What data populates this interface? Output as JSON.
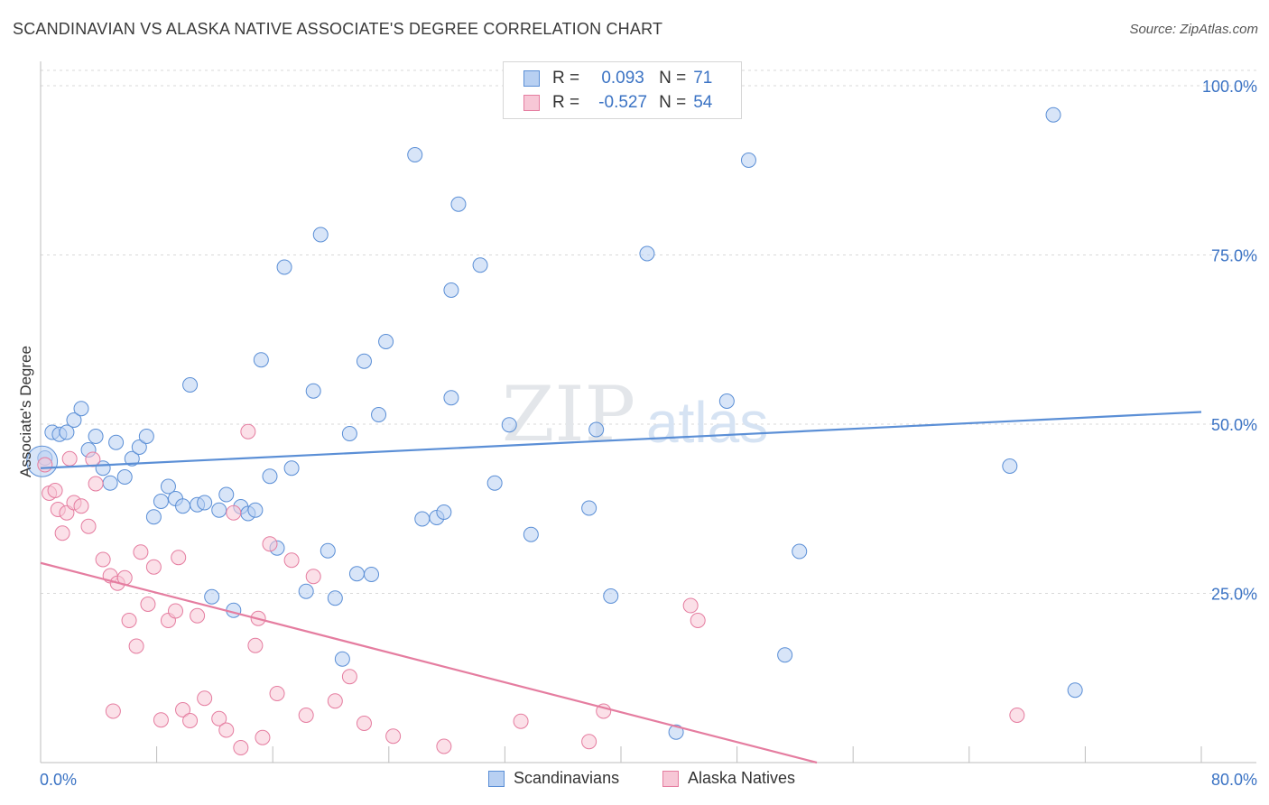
{
  "title": "SCANDINAVIAN VS ALASKA NATIVE ASSOCIATE'S DEGREE CORRELATION CHART",
  "source": "Source: ZipAtlas.com",
  "watermark": {
    "zip": "ZIP",
    "atlas": "atlas"
  },
  "legend": {
    "rows": [
      {
        "r_label": "R =",
        "r_value": "0.093",
        "n_label": "N =",
        "n_value": "71",
        "fill": "#b8d0f2",
        "stroke": "#5b8fd6"
      },
      {
        "r_label": "R =",
        "r_value": "-0.527",
        "n_label": "N =",
        "n_value": "54",
        "fill": "#f7c7d6",
        "stroke": "#e57da0"
      }
    ]
  },
  "bottom_legend": [
    {
      "label": "Scandinavians",
      "fill": "#b8d0f2",
      "stroke": "#5b8fd6"
    },
    {
      "label": "Alaska Natives",
      "fill": "#f7c7d6",
      "stroke": "#e57da0"
    }
  ],
  "chart_data": {
    "type": "scatter",
    "title": "SCANDINAVIAN VS ALASKA NATIVE ASSOCIATE'S DEGREE CORRELATION CHART",
    "xlabel": "",
    "ylabel": "Associate's Degree",
    "xlim": [
      0,
      80
    ],
    "ylim": [
      0,
      100
    ],
    "x_tick_labels": [
      "0.0%",
      "80.0%"
    ],
    "y_tick_labels": [
      {
        "value": 25,
        "label": "25.0%"
      },
      {
        "value": 50,
        "label": "50.0%"
      },
      {
        "value": 75,
        "label": "75.0%"
      },
      {
        "value": 100,
        "label": "100.0%"
      }
    ],
    "series": [
      {
        "name": "Scandinavians",
        "color": "#5b8fd6",
        "fill": "#b8d0f2",
        "trend": {
          "x": [
            0,
            80
          ],
          "y": [
            43.5,
            51.8
          ]
        },
        "points": [
          [
            0.3,
            45.0
          ],
          [
            0.8,
            48.8
          ],
          [
            1.3,
            48.5
          ],
          [
            1.8,
            48.8
          ],
          [
            2.3,
            50.6
          ],
          [
            2.8,
            52.3
          ],
          [
            3.3,
            46.2
          ],
          [
            3.8,
            48.2
          ],
          [
            4.3,
            43.5
          ],
          [
            4.8,
            41.3
          ],
          [
            5.2,
            47.3
          ],
          [
            5.8,
            42.2
          ],
          [
            6.3,
            44.9
          ],
          [
            6.8,
            46.6
          ],
          [
            7.3,
            48.2
          ],
          [
            7.8,
            36.3
          ],
          [
            8.3,
            38.6
          ],
          [
            8.8,
            40.8
          ],
          [
            9.3,
            39.0
          ],
          [
            9.8,
            37.9
          ],
          [
            10.3,
            55.8
          ],
          [
            10.8,
            38.1
          ],
          [
            11.3,
            38.4
          ],
          [
            11.8,
            24.5
          ],
          [
            12.3,
            37.3
          ],
          [
            12.8,
            39.6
          ],
          [
            13.3,
            22.5
          ],
          [
            13.8,
            37.8
          ],
          [
            14.3,
            36.8
          ],
          [
            14.8,
            37.3
          ],
          [
            15.2,
            59.5
          ],
          [
            15.8,
            42.3
          ],
          [
            16.3,
            31.7
          ],
          [
            16.8,
            73.2
          ],
          [
            17.3,
            43.5
          ],
          [
            18.3,
            25.3
          ],
          [
            18.8,
            54.9
          ],
          [
            19.3,
            78.0
          ],
          [
            19.8,
            31.3
          ],
          [
            20.3,
            24.3
          ],
          [
            20.8,
            15.3
          ],
          [
            21.3,
            48.6
          ],
          [
            21.8,
            27.9
          ],
          [
            22.3,
            59.3
          ],
          [
            22.8,
            27.8
          ],
          [
            23.3,
            51.4
          ],
          [
            23.8,
            62.2
          ],
          [
            25.8,
            89.8
          ],
          [
            26.3,
            36.0
          ],
          [
            27.3,
            36.2
          ],
          [
            27.8,
            37.0
          ],
          [
            28.3,
            53.9
          ],
          [
            28.3,
            69.8
          ],
          [
            28.8,
            82.5
          ],
          [
            30.3,
            73.5
          ],
          [
            31.3,
            41.3
          ],
          [
            32.3,
            49.9
          ],
          [
            33.8,
            33.7
          ],
          [
            37.8,
            37.6
          ],
          [
            38.3,
            49.2
          ],
          [
            39.3,
            24.6
          ],
          [
            41.8,
            75.2
          ],
          [
            43.8,
            4.5
          ],
          [
            47.3,
            53.4
          ],
          [
            48.8,
            89.0
          ],
          [
            51.3,
            15.9
          ],
          [
            52.3,
            31.2
          ],
          [
            66.8,
            43.8
          ],
          [
            69.8,
            95.7
          ],
          [
            71.3,
            10.7
          ],
          [
            0.1,
            44.5
          ]
        ]
      },
      {
        "name": "Alaska Natives",
        "color": "#e57da0",
        "fill": "#f7c7d6",
        "trend": {
          "x": [
            0,
            53.5
          ],
          "y": [
            29.5,
            0
          ]
        },
        "points": [
          [
            0.3,
            44.0
          ],
          [
            0.6,
            39.8
          ],
          [
            1.0,
            40.2
          ],
          [
            1.2,
            37.4
          ],
          [
            1.5,
            33.9
          ],
          [
            1.8,
            36.9
          ],
          [
            2.0,
            44.9
          ],
          [
            2.3,
            38.4
          ],
          [
            2.8,
            37.9
          ],
          [
            3.3,
            34.9
          ],
          [
            3.6,
            44.8
          ],
          [
            3.8,
            41.2
          ],
          [
            4.3,
            30.0
          ],
          [
            4.8,
            27.6
          ],
          [
            5.0,
            7.6
          ],
          [
            5.3,
            26.5
          ],
          [
            5.8,
            27.3
          ],
          [
            6.1,
            21.0
          ],
          [
            6.6,
            17.2
          ],
          [
            6.9,
            31.1
          ],
          [
            7.4,
            23.4
          ],
          [
            7.8,
            28.9
          ],
          [
            8.3,
            6.3
          ],
          [
            8.8,
            21.0
          ],
          [
            9.3,
            22.4
          ],
          [
            9.5,
            30.3
          ],
          [
            9.8,
            7.8
          ],
          [
            10.3,
            6.2
          ],
          [
            10.8,
            21.7
          ],
          [
            11.3,
            9.5
          ],
          [
            12.3,
            6.5
          ],
          [
            12.8,
            4.8
          ],
          [
            13.3,
            36.9
          ],
          [
            13.8,
            2.2
          ],
          [
            14.3,
            48.9
          ],
          [
            14.8,
            17.3
          ],
          [
            15.0,
            21.3
          ],
          [
            15.3,
            3.7
          ],
          [
            15.8,
            32.3
          ],
          [
            16.3,
            10.2
          ],
          [
            17.3,
            29.9
          ],
          [
            18.3,
            7.0
          ],
          [
            18.8,
            27.5
          ],
          [
            20.3,
            9.1
          ],
          [
            21.3,
            12.7
          ],
          [
            22.3,
            5.8
          ],
          [
            24.3,
            3.9
          ],
          [
            27.8,
            2.4
          ],
          [
            33.1,
            6.1
          ],
          [
            37.8,
            3.1
          ],
          [
            38.8,
            7.6
          ],
          [
            44.8,
            23.2
          ],
          [
            45.3,
            21.0
          ],
          [
            67.3,
            7.0
          ]
        ]
      }
    ]
  }
}
